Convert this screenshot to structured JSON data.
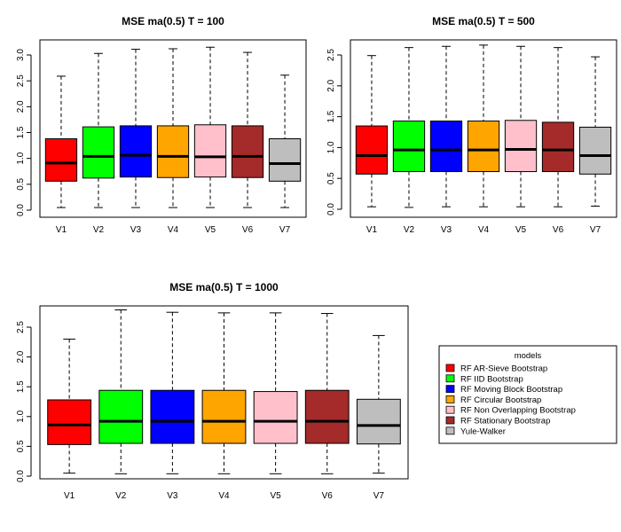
{
  "chart_data": [
    {
      "type": "box",
      "title": "MSE ma(0.5) T = 100",
      "xlabel": "",
      "ylabel": "",
      "categories": [
        "V1",
        "V2",
        "V3",
        "V4",
        "V5",
        "V6",
        "V7"
      ],
      "yticks": [
        "0.0",
        "0.5",
        "1.0",
        "1.5",
        "2.0",
        "2.5",
        "3.0"
      ],
      "ylim": [
        0,
        3.15
      ],
      "boxes": [
        {
          "min": 0.05,
          "q1": 0.56,
          "median": 0.91,
          "q3": 1.38,
          "max": 2.59
        },
        {
          "min": 0.05,
          "q1": 0.62,
          "median": 1.04,
          "q3": 1.61,
          "max": 3.03
        },
        {
          "min": 0.05,
          "q1": 0.64,
          "median": 1.06,
          "q3": 1.63,
          "max": 3.11
        },
        {
          "min": 0.05,
          "q1": 0.63,
          "median": 1.04,
          "q3": 1.63,
          "max": 3.12
        },
        {
          "min": 0.05,
          "q1": 0.64,
          "median": 1.03,
          "q3": 1.65,
          "max": 3.15
        },
        {
          "min": 0.05,
          "q1": 0.63,
          "median": 1.04,
          "q3": 1.63,
          "max": 3.05
        },
        {
          "min": 0.05,
          "q1": 0.56,
          "median": 0.9,
          "q3": 1.38,
          "max": 2.61
        }
      ]
    },
    {
      "type": "box",
      "title": "MSE ma(0.5) T = 500",
      "xlabel": "",
      "ylabel": "",
      "categories": [
        "V1",
        "V2",
        "V3",
        "V4",
        "V5",
        "V6",
        "V7"
      ],
      "yticks": [
        "0.0",
        "0.5",
        "1.0",
        "1.5",
        "2.0",
        "2.5"
      ],
      "ylim": [
        0,
        2.66
      ],
      "boxes": [
        {
          "min": 0.04,
          "q1": 0.57,
          "median": 0.87,
          "q3": 1.35,
          "max": 2.49
        },
        {
          "min": 0.03,
          "q1": 0.61,
          "median": 0.96,
          "q3": 1.43,
          "max": 2.62
        },
        {
          "min": 0.04,
          "q1": 0.61,
          "median": 0.96,
          "q3": 1.43,
          "max": 2.64
        },
        {
          "min": 0.04,
          "q1": 0.61,
          "median": 0.96,
          "q3": 1.43,
          "max": 2.66
        },
        {
          "min": 0.04,
          "q1": 0.61,
          "median": 0.97,
          "q3": 1.44,
          "max": 2.64
        },
        {
          "min": 0.04,
          "q1": 0.61,
          "median": 0.96,
          "q3": 1.41,
          "max": 2.62
        },
        {
          "min": 0.05,
          "q1": 0.57,
          "median": 0.87,
          "q3": 1.33,
          "max": 2.47
        }
      ]
    },
    {
      "type": "box",
      "title": "MSE ma(0.5) T = 1000",
      "xlabel": "",
      "ylabel": "",
      "categories": [
        "V1",
        "V2",
        "V3",
        "V4",
        "V5",
        "V6",
        "V7"
      ],
      "yticks": [
        "0.0",
        "0.5",
        "1.0",
        "1.5",
        "2.0",
        "2.5"
      ],
      "ylim": [
        0,
        2.8
      ],
      "boxes": [
        {
          "min": 0.05,
          "q1": 0.53,
          "median": 0.86,
          "q3": 1.28,
          "max": 2.3
        },
        {
          "min": 0.04,
          "q1": 0.55,
          "median": 0.92,
          "q3": 1.44,
          "max": 2.79
        },
        {
          "min": 0.04,
          "q1": 0.55,
          "median": 0.92,
          "q3": 1.44,
          "max": 2.75
        },
        {
          "min": 0.04,
          "q1": 0.55,
          "median": 0.92,
          "q3": 1.44,
          "max": 2.74
        },
        {
          "min": 0.04,
          "q1": 0.55,
          "median": 0.92,
          "q3": 1.42,
          "max": 2.74
        },
        {
          "min": 0.04,
          "q1": 0.55,
          "median": 0.92,
          "q3": 1.44,
          "max": 2.73
        },
        {
          "min": 0.05,
          "q1": 0.54,
          "median": 0.85,
          "q3": 1.29,
          "max": 2.36
        }
      ]
    }
  ],
  "colors": [
    "#ff0000",
    "#00ff00",
    "#0000ff",
    "#ffa500",
    "#ffc0cb",
    "#a52a2a",
    "#bebebe"
  ],
  "legend": {
    "title": "models",
    "items": [
      "RF AR-Sieve Bootstrap",
      "RF IID Bootstrap",
      "RF Moving Block Bootstrap",
      "RF Circular Bootstrap",
      "RF Non Overlapping Bootstrap",
      "RF Stationary Bootstrap",
      "Yule-Walker"
    ]
  }
}
